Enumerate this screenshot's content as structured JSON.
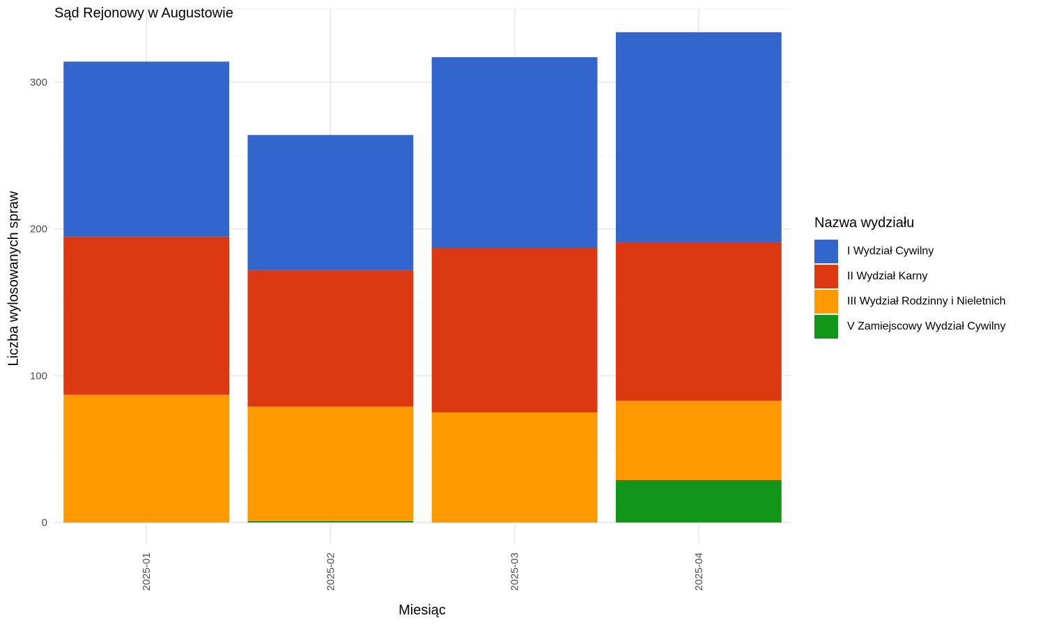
{
  "chart_data": {
    "type": "bar",
    "stacked": true,
    "title": "Sąd Rejonowy w Augustowie",
    "xlabel": "Miesiąc",
    "ylabel": "Liczba wylosowanych spraw",
    "categories": [
      "2025-01",
      "2025-02",
      "2025-03",
      "2025-04"
    ],
    "ylim": [
      0,
      350
    ],
    "yticks": [
      0,
      100,
      200,
      300
    ],
    "grid": true,
    "legend_title": "Nazwa wydziału",
    "legend_position": "right",
    "series": [
      {
        "name": "V Zamiejscowy Wydział Cywilny",
        "color": "#109618",
        "values": [
          0,
          1,
          0,
          29
        ]
      },
      {
        "name": "III Wydział Rodzinny i Nieletnich",
        "color": "#FF9900",
        "values": [
          87,
          78,
          75,
          54
        ]
      },
      {
        "name": "II Wydział Karny",
        "color": "#DC3912",
        "values": [
          108,
          93,
          112,
          108
        ]
      },
      {
        "name": "I Wydział Cywilny",
        "color": "#3366CC",
        "values": [
          119,
          92,
          130,
          143
        ]
      }
    ]
  }
}
